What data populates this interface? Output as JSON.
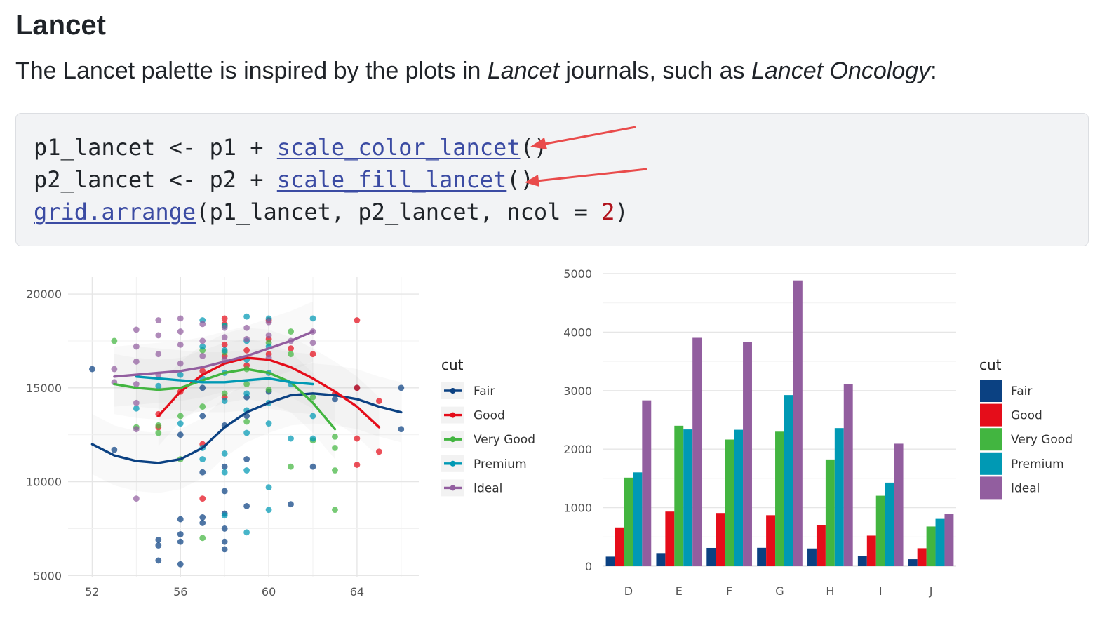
{
  "section": {
    "heading": "Lancet",
    "intro_before": "The Lancet palette is inspired by the plots in ",
    "intro_em1": "Lancet",
    "intro_middle": " journals, such as ",
    "intro_em2": "Lancet Oncology",
    "intro_after": ":"
  },
  "code": {
    "line1": {
      "pre": "p1_lancet <- p1 + ",
      "fn": "scale_color_lancet",
      "post": "()"
    },
    "line2": {
      "pre": "p2_lancet <- p2 + ",
      "fn": "scale_fill_lancet",
      "post": "()"
    },
    "line3": {
      "fn": "grid.arrange",
      "pre": "(p1_lancet, p2_lancet, ncol = ",
      "num": "2",
      "post": ")"
    }
  },
  "colors": {
    "fair": "#0b4182",
    "good": "#e50d1a",
    "very_good": "#42b540",
    "premium": "#0099b4",
    "ideal": "#925e9f",
    "arrow": "#e94b4b"
  },
  "chart_data": [
    {
      "type": "scatter",
      "title": "",
      "xlabel": "",
      "ylabel": "",
      "xlim": [
        51.7,
        66.8
      ],
      "ylim": [
        4900,
        20900
      ],
      "x_ticks": [
        52,
        56,
        60,
        64
      ],
      "y_ticks": [
        5000,
        10000,
        15000,
        20000
      ],
      "legend_title": "cut",
      "legend_position": "right",
      "grid": true,
      "series": [
        {
          "name": "Fair",
          "points": [
            [
              52,
              16000
            ],
            [
              53,
              11700
            ],
            [
              55,
              6900
            ],
            [
              55,
              6600
            ],
            [
              55,
              5800
            ],
            [
              56,
              5600
            ],
            [
              56,
              6800
            ],
            [
              56,
              7200
            ],
            [
              56,
              8000
            ],
            [
              56,
              12500
            ],
            [
              57,
              7800
            ],
            [
              57,
              8100
            ],
            [
              57,
              10500
            ],
            [
              57,
              13500
            ],
            [
              57,
              15000
            ],
            [
              58,
              6400
            ],
            [
              58,
              6800
            ],
            [
              58,
              7500
            ],
            [
              58,
              8300
            ],
            [
              58,
              9500
            ],
            [
              58,
              10800
            ],
            [
              58,
              13000
            ],
            [
              59,
              8700
            ],
            [
              59,
              11200
            ],
            [
              59,
              13500
            ],
            [
              59,
              14500
            ],
            [
              60,
              14800
            ],
            [
              61,
              8800
            ],
            [
              62,
              10800
            ],
            [
              63,
              14400
            ],
            [
              64,
              15000
            ],
            [
              66,
              15000
            ],
            [
              66,
              12800
            ]
          ],
          "smooth": [
            [
              52,
              12000
            ],
            [
              53,
              11400
            ],
            [
              54,
              11100
            ],
            [
              55,
              11000
            ],
            [
              56,
              11200
            ],
            [
              57,
              11800
            ],
            [
              58,
              12900
            ],
            [
              59,
              13700
            ],
            [
              60,
              14200
            ],
            [
              61,
              14600
            ],
            [
              62,
              14700
            ],
            [
              63,
              14600
            ],
            [
              64,
              14400
            ],
            [
              65,
              14000
            ],
            [
              66,
              13700
            ]
          ]
        },
        {
          "name": "Good",
          "points": [
            [
              55,
              12900
            ],
            [
              55,
              13600
            ],
            [
              56,
              14800
            ],
            [
              57,
              9100
            ],
            [
              57,
              12000
            ],
            [
              57,
              15900
            ],
            [
              58,
              14500
            ],
            [
              58,
              16700
            ],
            [
              58,
              17300
            ],
            [
              58,
              18400
            ],
            [
              58,
              18700
            ],
            [
              59,
              16200
            ],
            [
              59,
              17000
            ],
            [
              60,
              16800
            ],
            [
              60,
              17600
            ],
            [
              60,
              18600
            ],
            [
              61,
              17100
            ],
            [
              62,
              16800
            ],
            [
              63,
              14700
            ],
            [
              64,
              18600
            ],
            [
              64,
              15000
            ],
            [
              64,
              12300
            ],
            [
              64,
              10900
            ],
            [
              65,
              14300
            ],
            [
              65,
              11600
            ]
          ],
          "smooth": [
            [
              55,
              13500
            ],
            [
              56,
              14800
            ],
            [
              57,
              15700
            ],
            [
              58,
              16300
            ],
            [
              59,
              16600
            ],
            [
              60,
              16500
            ],
            [
              61,
              16100
            ],
            [
              62,
              15500
            ],
            [
              63,
              14800
            ],
            [
              64,
              14000
            ],
            [
              65,
              12900
            ]
          ]
        },
        {
          "name": "Very Good",
          "points": [
            [
              53,
              17500
            ],
            [
              54,
              12900
            ],
            [
              55,
              12600
            ],
            [
              55,
              13000
            ],
            [
              56,
              11200
            ],
            [
              56,
              13500
            ],
            [
              57,
              14000
            ],
            [
              57,
              17000
            ],
            [
              57,
              7000
            ],
            [
              58,
              14700
            ],
            [
              58,
              16900
            ],
            [
              58,
              18300
            ],
            [
              59,
              16000
            ],
            [
              59,
              15200
            ],
            [
              59,
              13200
            ],
            [
              60,
              14900
            ],
            [
              60,
              17400
            ],
            [
              61,
              16800
            ],
            [
              61,
              18000
            ],
            [
              61,
              10800
            ],
            [
              62,
              14500
            ],
            [
              62,
              12200
            ],
            [
              63,
              12400
            ],
            [
              63,
              11800
            ],
            [
              63,
              10600
            ],
            [
              63,
              8500
            ]
          ],
          "smooth": [
            [
              53,
              15200
            ],
            [
              54,
              15000
            ],
            [
              55,
              14900
            ],
            [
              56,
              15000
            ],
            [
              57,
              15400
            ],
            [
              58,
              15800
            ],
            [
              59,
              16000
            ],
            [
              60,
              15800
            ],
            [
              61,
              15300
            ],
            [
              62,
              14200
            ],
            [
              63,
              12800
            ]
          ]
        },
        {
          "name": "Premium",
          "points": [
            [
              54,
              13900
            ],
            [
              55,
              15100
            ],
            [
              56,
              15700
            ],
            [
              56,
              13100
            ],
            [
              57,
              18600
            ],
            [
              57,
              17200
            ],
            [
              57,
              15500
            ],
            [
              57,
              11800
            ],
            [
              57,
              11200
            ],
            [
              58,
              18300
            ],
            [
              58,
              17000
            ],
            [
              58,
              15800
            ],
            [
              58,
              14300
            ],
            [
              58,
              11500
            ],
            [
              58,
              10500
            ],
            [
              58,
              8200
            ],
            [
              59,
              18800
            ],
            [
              59,
              17500
            ],
            [
              59,
              16500
            ],
            [
              59,
              14700
            ],
            [
              59,
              13800
            ],
            [
              59,
              12600
            ],
            [
              59,
              10600
            ],
            [
              59,
              7300
            ],
            [
              60,
              18700
            ],
            [
              60,
              17200
            ],
            [
              60,
              15800
            ],
            [
              60,
              14200
            ],
            [
              60,
              13100
            ],
            [
              60,
              9700
            ],
            [
              60,
              8500
            ],
            [
              61,
              15200
            ],
            [
              61,
              12300
            ],
            [
              62,
              18700
            ],
            [
              62,
              13500
            ],
            [
              62,
              12300
            ]
          ],
          "smooth": [
            [
              54,
              15600
            ],
            [
              55,
              15500
            ],
            [
              56,
              15400
            ],
            [
              57,
              15300
            ],
            [
              58,
              15300
            ],
            [
              59,
              15400
            ],
            [
              60,
              15500
            ],
            [
              61,
              15300
            ],
            [
              62,
              15200
            ]
          ]
        },
        {
          "name": "Ideal",
          "points": [
            [
              53,
              16000
            ],
            [
              53,
              15300
            ],
            [
              54,
              18100
            ],
            [
              54,
              17200
            ],
            [
              54,
              16400
            ],
            [
              54,
              15200
            ],
            [
              54,
              14200
            ],
            [
              54,
              12800
            ],
            [
              54,
              9100
            ],
            [
              55,
              18600
            ],
            [
              55,
              17800
            ],
            [
              55,
              16800
            ],
            [
              55,
              15700
            ],
            [
              56,
              18700
            ],
            [
              56,
              18000
            ],
            [
              56,
              17300
            ],
            [
              56,
              16300
            ],
            [
              57,
              18400
            ],
            [
              57,
              17500
            ],
            [
              57,
              16700
            ],
            [
              58,
              18200
            ],
            [
              58,
              17700
            ],
            [
              58,
              16500
            ],
            [
              59,
              18200
            ],
            [
              59,
              17600
            ],
            [
              60,
              18500
            ],
            [
              60,
              17800
            ],
            [
              60,
              16600
            ],
            [
              61,
              17500
            ],
            [
              62,
              18000
            ],
            [
              62,
              17400
            ]
          ],
          "smooth": [
            [
              53,
              15600
            ],
            [
              54,
              15700
            ],
            [
              55,
              15800
            ],
            [
              56,
              15900
            ],
            [
              57,
              16100
            ],
            [
              58,
              16400
            ],
            [
              59,
              16700
            ],
            [
              60,
              17100
            ],
            [
              61,
              17500
            ],
            [
              62,
              18000
            ]
          ]
        }
      ]
    },
    {
      "type": "bar",
      "title": "",
      "xlabel": "",
      "ylabel": "",
      "ylim": [
        0,
        5000
      ],
      "y_ticks": [
        0,
        1000,
        2000,
        3000,
        4000,
        5000
      ],
      "legend_title": "cut",
      "legend_position": "right",
      "grid": true,
      "categories": [
        "D",
        "E",
        "F",
        "G",
        "H",
        "I",
        "J"
      ],
      "series": [
        {
          "name": "Fair",
          "values": [
            163,
            224,
            312,
            314,
            303,
            175,
            119
          ]
        },
        {
          "name": "Good",
          "values": [
            662,
            933,
            909,
            871,
            702,
            522,
            307
          ]
        },
        {
          "name": "Very Good",
          "values": [
            1513,
            2400,
            2164,
            2299,
            1824,
            1204,
            678
          ]
        },
        {
          "name": "Premium",
          "values": [
            1603,
            2337,
            2331,
            2924,
            2360,
            1428,
            808
          ]
        },
        {
          "name": "Ideal",
          "values": [
            2834,
            3903,
            3826,
            4884,
            3115,
            2093,
            896
          ]
        }
      ]
    }
  ]
}
